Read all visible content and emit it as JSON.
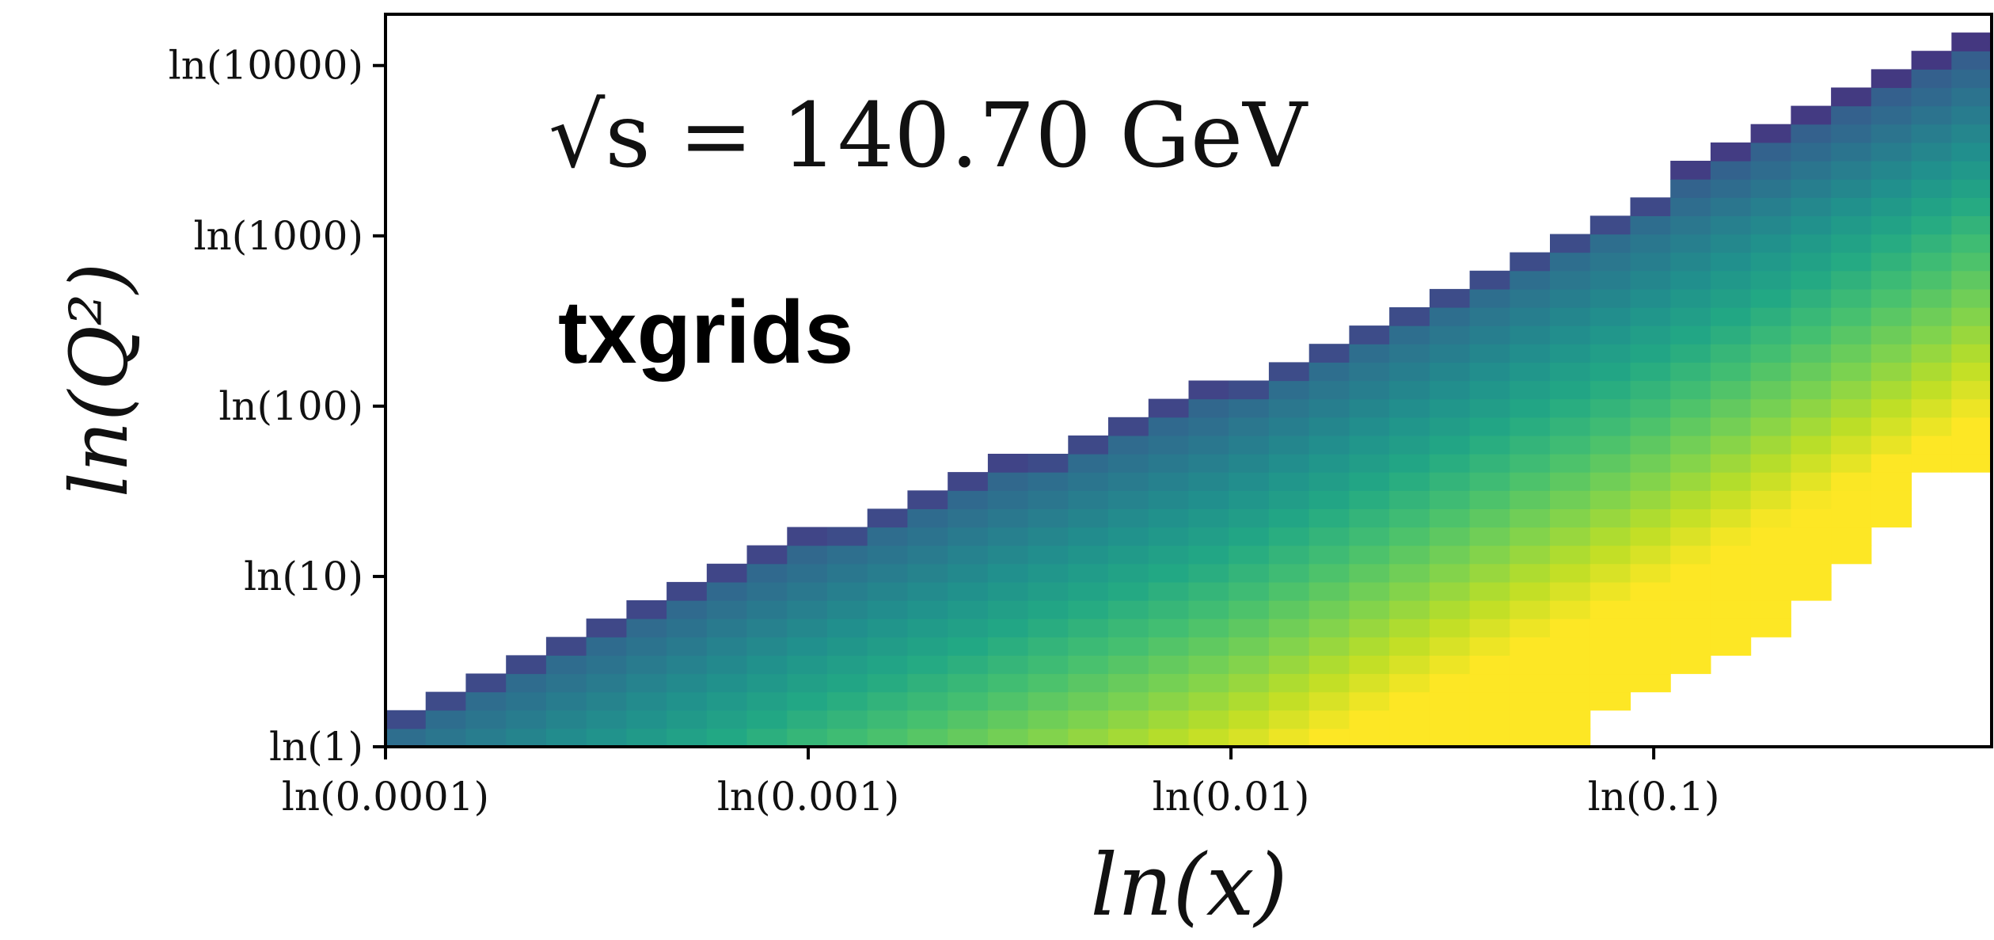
{
  "chart_data": {
    "type": "heatmap",
    "annotation": "√s = 140.70 GeV",
    "tag": "txgrids",
    "xlabel": "ln(x)",
    "ylabel": "ln(Q²)",
    "x_scale": "log",
    "y_scale": "log",
    "xlim": [
      0.0001,
      0.63
    ],
    "ylim": [
      1,
      20000
    ],
    "x_ticks": [
      {
        "value": 0.0001,
        "label": "ln(0.0001)"
      },
      {
        "value": 0.001,
        "label": "ln(0.001)"
      },
      {
        "value": 0.01,
        "label": "ln(0.01)"
      },
      {
        "value": 0.1,
        "label": "ln(0.1)"
      }
    ],
    "y_ticks": [
      {
        "value": 1,
        "label": "ln(1)"
      },
      {
        "value": 10,
        "label": "ln(10)"
      },
      {
        "value": 100,
        "label": "ln(100)"
      },
      {
        "value": 1000,
        "label": "ln(1000)"
      },
      {
        "value": 10000,
        "label": "ln(10000)"
      }
    ],
    "grid": false,
    "colormap": "viridis",
    "kinematic_region": {
      "lower_bound": "Q² ≥ 1",
      "upper_boundary": [
        {
          "x": 0.0001,
          "Q2": 1.6
        },
        {
          "x": 0.001,
          "Q2": 18
        },
        {
          "x": 0.01,
          "Q2": 140
        },
        {
          "x": 0.1,
          "Q2": 1900
        },
        {
          "x": 0.63,
          "Q2": 20000
        }
      ],
      "lower_boundary": [
        {
          "x": 0.063,
          "Q2": 1
        },
        {
          "x": 0.1,
          "Q2": 2.2
        },
        {
          "x": 0.22,
          "Q2": 5.5
        },
        {
          "x": 0.4,
          "Q2": 25
        },
        {
          "x": 0.47,
          "Q2": 45
        },
        {
          "x": 0.63,
          "Q2": 45
        }
      ]
    }
  }
}
